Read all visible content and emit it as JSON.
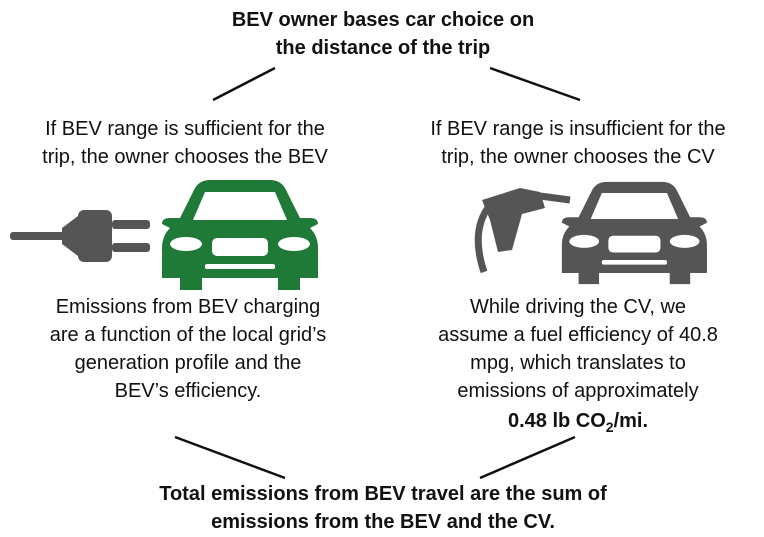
{
  "top": {
    "lines": [
      "BEV owner bases car choice on",
      "the distance of the trip"
    ]
  },
  "left_condition": {
    "lines": [
      "If BEV range is sufficient for the",
      "trip, the owner chooses the BEV"
    ]
  },
  "right_condition": {
    "lines": [
      "If BEV range is insufficient for the",
      "trip, the owner chooses the CV"
    ]
  },
  "left_result": {
    "lines": [
      "Emissions from BEV charging",
      "are a function of the local grid’s",
      "generation profile and the",
      "BEV’s efficiency."
    ]
  },
  "right_result": {
    "lines": [
      "While driving the CV, we",
      "assume a fuel efficiency of 40.8",
      "mpg, which translates to",
      "emissions of approximately"
    ],
    "emphasis": {
      "before_subscript": "0.48 lb CO",
      "subscript": "2",
      "after_subscript": "/mi."
    }
  },
  "bottom": {
    "lines": [
      "Total emissions from BEV travel are the sum of",
      "emissions from the BEV and the CV."
    ]
  }
}
